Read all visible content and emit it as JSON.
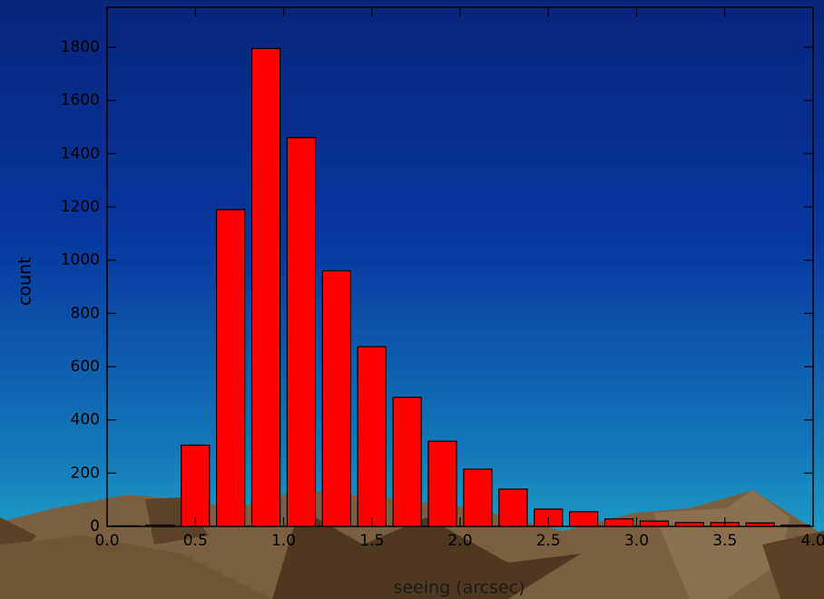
{
  "chart_data": {
    "type": "histogram",
    "xlabel": "seeing (arcsec)",
    "ylabel": "count",
    "bins": [
      0,
      0.2,
      0.4,
      0.6,
      0.8,
      1.0,
      1.2,
      1.4,
      1.6,
      1.8,
      2.0,
      2.2,
      2.4,
      2.6,
      2.8,
      3.0,
      3.2,
      3.4,
      3.6,
      3.8,
      4.0
    ],
    "values": [
      2,
      5,
      305,
      1190,
      1795,
      1460,
      960,
      675,
      485,
      320,
      215,
      140,
      65,
      55,
      28,
      20,
      14,
      14,
      13,
      5
    ],
    "color": "#ff0000",
    "xlim": [
      0,
      4.0
    ],
    "xticks": [
      {
        "value": 0,
        "label": "0.0"
      },
      {
        "value": 0.5,
        "label": "0.5"
      },
      {
        "value": 1,
        "label": "1.0"
      },
      {
        "value": 1.5,
        "label": "1.5"
      },
      {
        "value": 2,
        "label": "2.0"
      },
      {
        "value": 2.5,
        "label": "2.5"
      },
      {
        "value": 3,
        "label": "3.0"
      },
      {
        "value": 3.5,
        "label": "3.5"
      },
      {
        "value": 4,
        "label": "4.0"
      }
    ],
    "ylim": [
      0,
      1950
    ],
    "yticks": [
      0,
      200,
      400,
      600,
      800,
      1000,
      1200,
      1400,
      1600,
      1800
    ]
  }
}
